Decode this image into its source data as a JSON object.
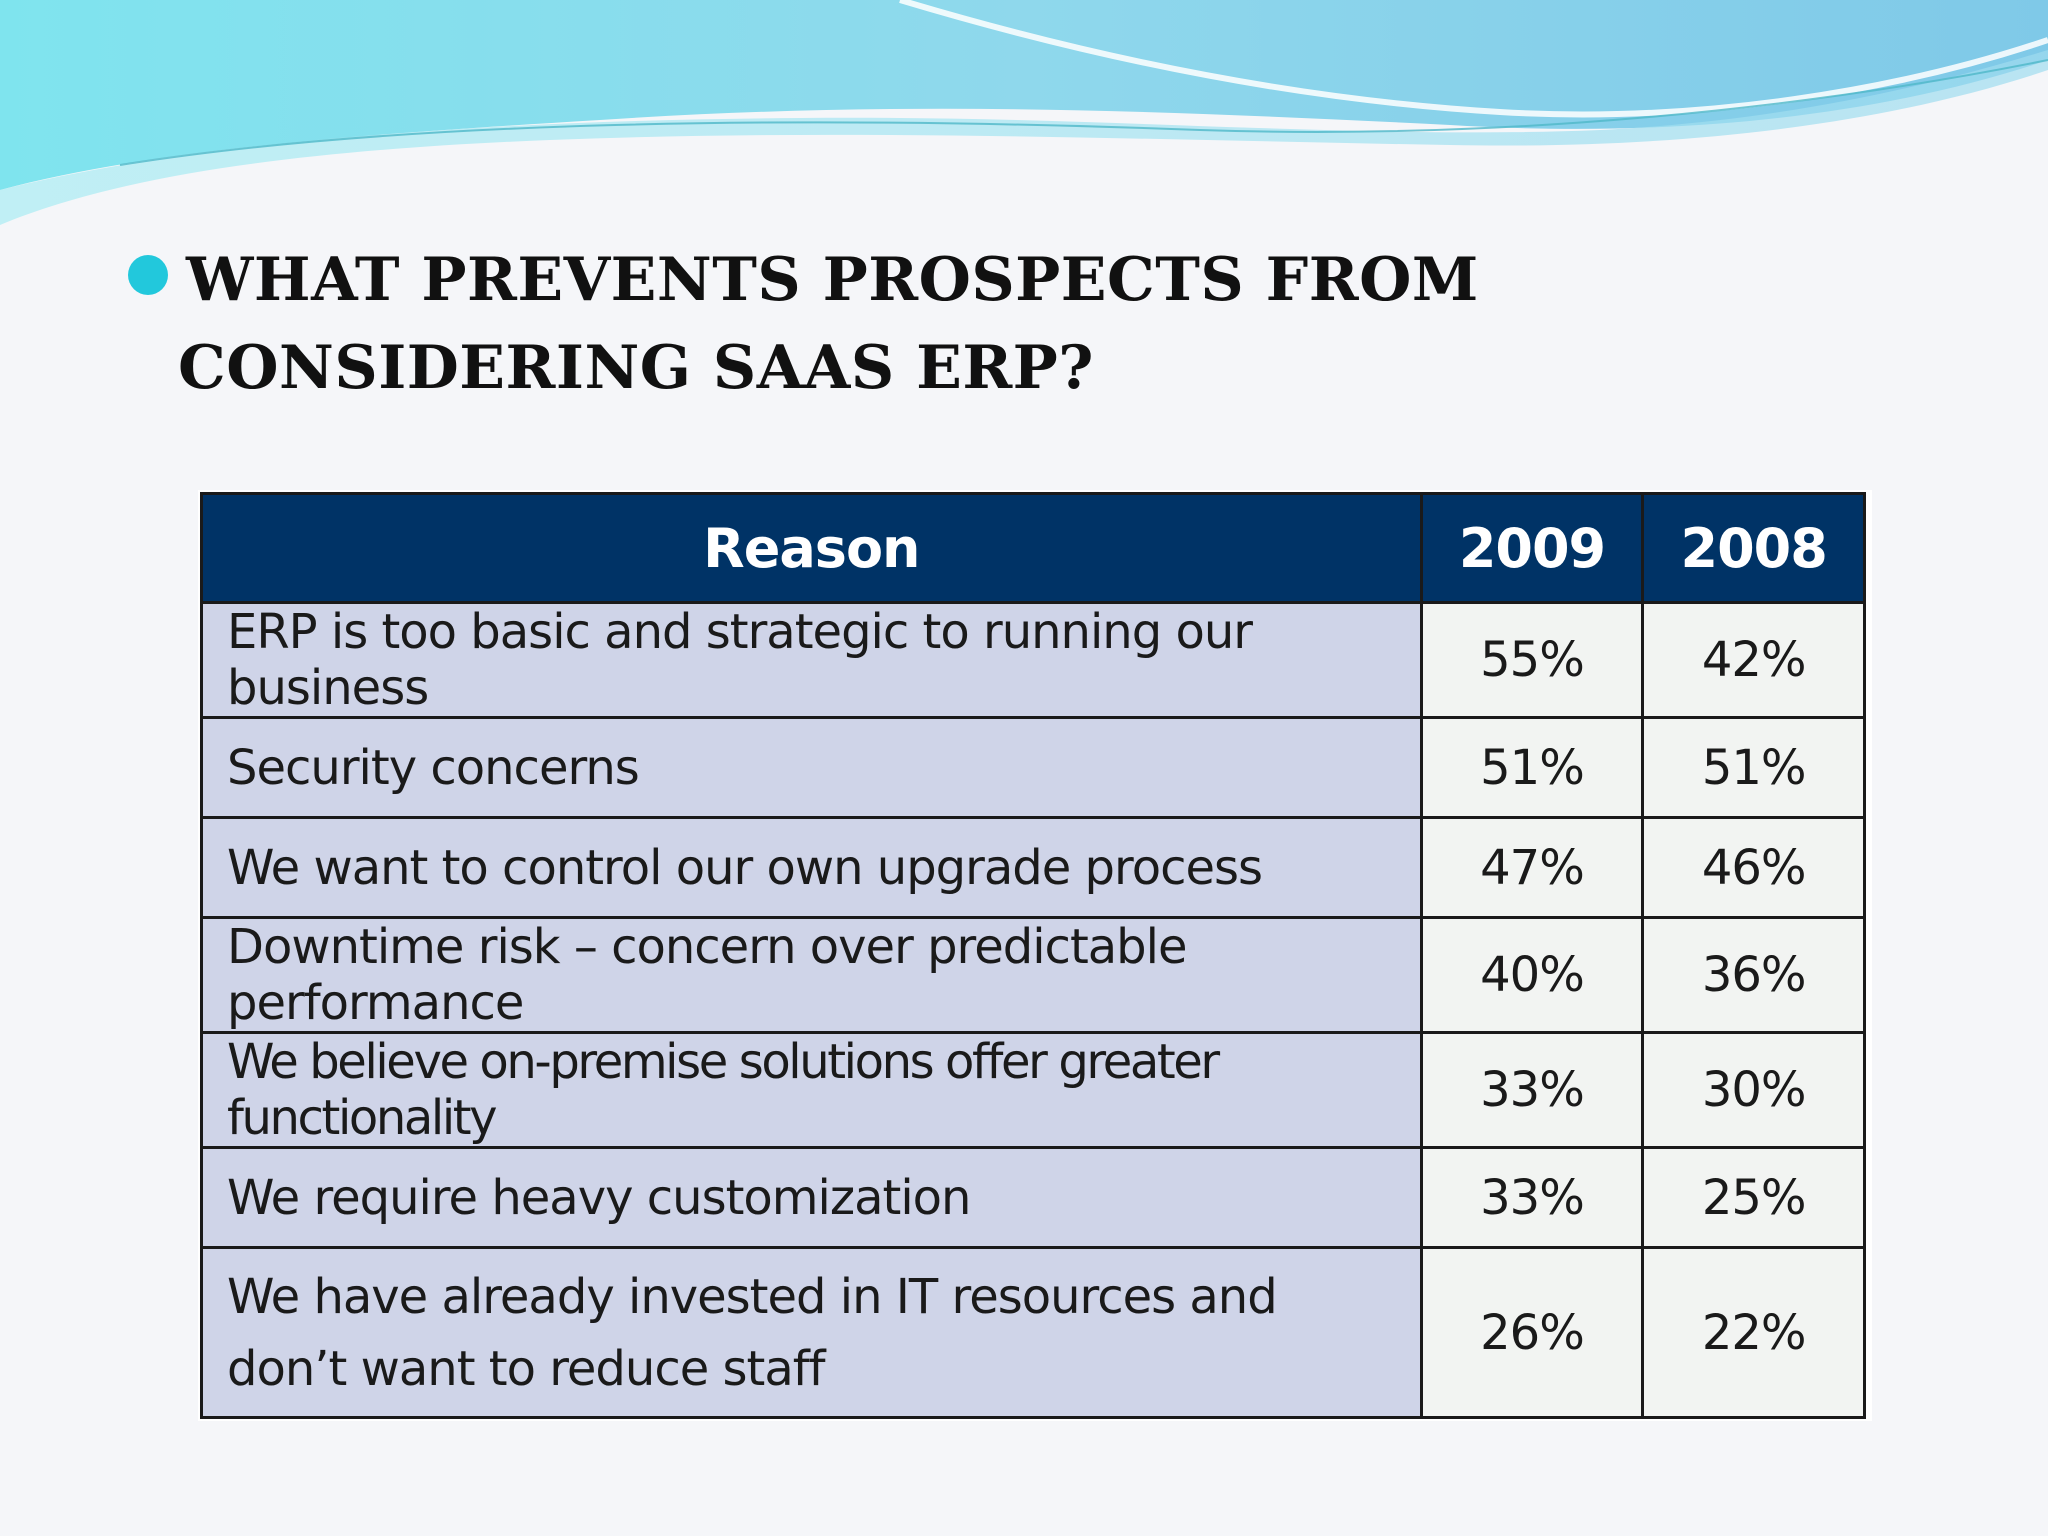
{
  "slide": {
    "title_line1": "WHAT PREVENTS PROSPECTS FROM",
    "title_line2": "CONSIDERING SAAS ERP?",
    "bullet_icon": "circle-bullet",
    "colors": {
      "bullet": "#22c8dc",
      "header_bg": "#003366",
      "reason_bg": "#cfd4e8",
      "value_bg": "#f2f4f2"
    }
  },
  "table": {
    "headers": [
      "Reason",
      "2009",
      "2008"
    ],
    "rows": [
      {
        "reason": "ERP is too basic and strategic to running our business",
        "y2009": "55%",
        "y2008": "42%"
      },
      {
        "reason": "Security concerns",
        "y2009": "51%",
        "y2008": "51%"
      },
      {
        "reason": "We want to control our own upgrade process",
        "y2009": "47%",
        "y2008": "46%"
      },
      {
        "reason": "Downtime risk – concern over predictable performance",
        "y2009": "40%",
        "y2008": "36%"
      },
      {
        "reason": "We believe on-premise solutions offer greater functionality",
        "y2009": "33%",
        "y2008": "30%"
      },
      {
        "reason": "We require heavy customization",
        "y2009": "33%",
        "y2008": "25%"
      },
      {
        "reason": "We have already invested in IT resources and don’t want to reduce staff",
        "y2009": "26%",
        "y2008": "22%"
      }
    ]
  }
}
